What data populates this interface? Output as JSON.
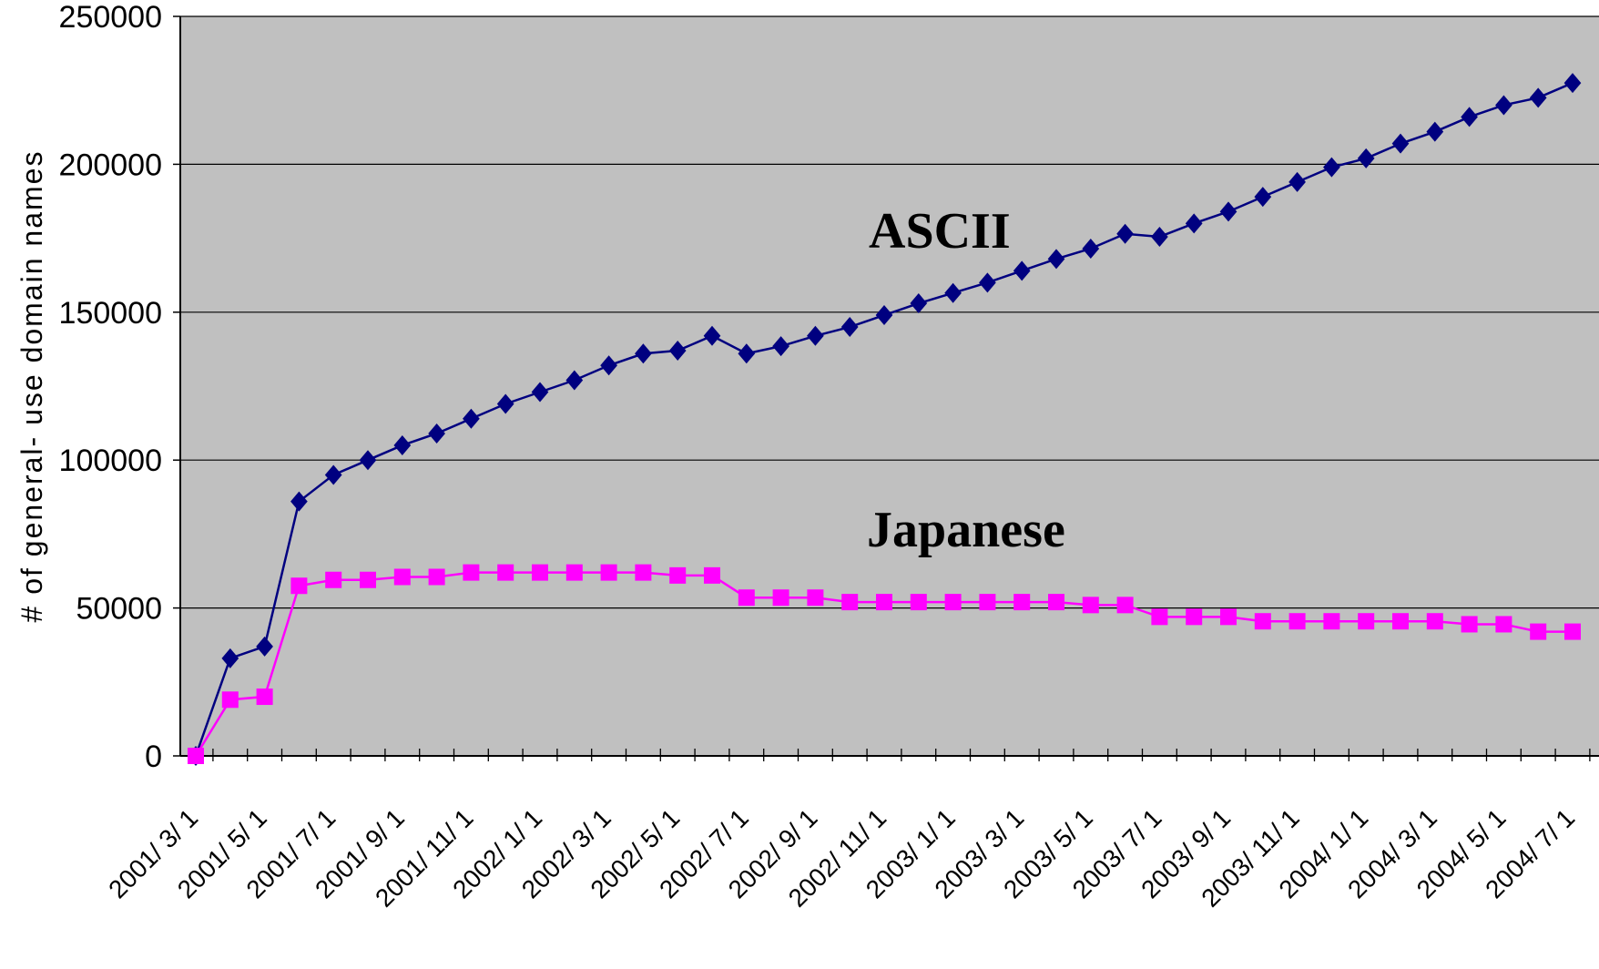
{
  "chart_data": {
    "type": "line",
    "title": "",
    "xlabel": "",
    "ylabel": "# of general- use domain names",
    "ylim": [
      0,
      250000
    ],
    "yticks": [
      0,
      50000,
      100000,
      150000,
      200000,
      250000
    ],
    "ytick_labels": [
      "0",
      "50000",
      "100000",
      "150000",
      "200000",
      "250000"
    ],
    "grid": true,
    "legend": "none",
    "categories": [
      "2001/3/1",
      "2001/4/1",
      "2001/5/1",
      "2001/6/1",
      "2001/7/1",
      "2001/8/1",
      "2001/9/1",
      "2001/10/1",
      "2001/11/1",
      "2001/12/1",
      "2002/1/1",
      "2002/2/1",
      "2002/3/1",
      "2002/4/1",
      "2002/5/1",
      "2002/6/1",
      "2002/7/1",
      "2002/8/1",
      "2002/9/1",
      "2002/10/1",
      "2002/11/1",
      "2002/12/1",
      "2003/1/1",
      "2003/2/1",
      "2003/3/1",
      "2003/4/1",
      "2003/5/1",
      "2003/6/1",
      "2003/7/1",
      "2003/8/1",
      "2003/9/1",
      "2003/10/1",
      "2003/11/1",
      "2003/12/1",
      "2004/1/1",
      "2004/2/1",
      "2004/3/1",
      "2004/4/1",
      "2004/5/1",
      "2004/6/1",
      "2004/7/1"
    ],
    "x_tick_labels": [
      "2001/ 3/ 1",
      "2001/ 5/ 1",
      "2001/ 7/ 1",
      "2001/ 9/ 1",
      "2001/ 11/ 1",
      "2002/ 1/ 1",
      "2002/ 3/ 1",
      "2002/ 5/ 1",
      "2002/ 7/ 1",
      "2002/ 9/ 1",
      "2002/ 11/ 1",
      "2003/ 1/ 1",
      "2003/ 3/ 1",
      "2003/ 5/ 1",
      "2003/ 7/ 1",
      "2003/ 9/ 1",
      "2003/ 11/ 1",
      "2004/ 1/ 1",
      "2004/ 3/ 1",
      "2004/ 5/ 1",
      "2004/ 7/ 1"
    ],
    "series": [
      {
        "name": "ASCII",
        "color": "#000080",
        "marker": "diamond",
        "values": [
          0,
          33000,
          37000,
          86000,
          95000,
          100000,
          105000,
          109000,
          114000,
          119000,
          123000,
          127000,
          132000,
          136000,
          137000,
          142000,
          136000,
          138500,
          142000,
          145000,
          149000,
          153000,
          156500,
          160000,
          164000,
          168000,
          171500,
          176500,
          175500,
          180000,
          184000,
          189000,
          194000,
          199000,
          202000,
          207000,
          211000,
          216000,
          220000,
          222500,
          227500
        ]
      },
      {
        "name": "Japanese",
        "color": "#ff00ff",
        "marker": "square",
        "values": [
          0,
          19000,
          20000,
          57500,
          59500,
          59500,
          60500,
          60500,
          62000,
          62000,
          62000,
          62000,
          62000,
          62000,
          61000,
          61000,
          53500,
          53500,
          53500,
          52000,
          52000,
          52000,
          52000,
          52000,
          52000,
          52000,
          51000,
          51000,
          47000,
          47000,
          47000,
          45500,
          45500,
          45500,
          45500,
          45500,
          45500,
          44500,
          44500,
          42000,
          42000
        ]
      }
    ],
    "annotations": [
      {
        "text": "ASCII"
      },
      {
        "text": "Japanese"
      }
    ]
  },
  "colors": {
    "plot_background": "#c0c0c0",
    "gridline": "#000000"
  }
}
